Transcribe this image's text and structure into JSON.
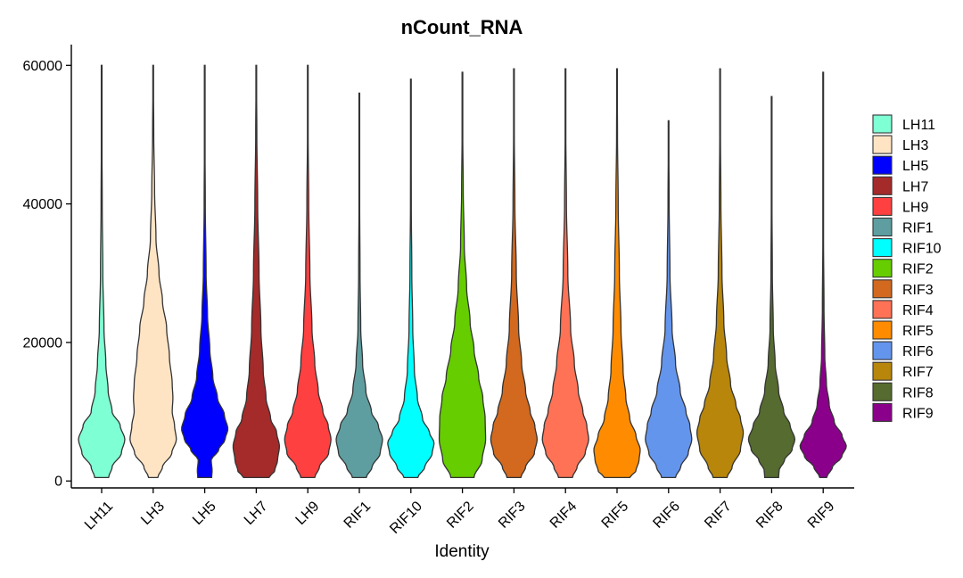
{
  "chart_data": {
    "type": "violin",
    "title": "nCount_RNA",
    "xlabel": "Identity",
    "ylabel": "",
    "ylim": [
      -1000,
      63000
    ],
    "yticks": [
      0,
      20000,
      40000,
      60000
    ],
    "ytick_labels": [
      "0",
      "20000",
      "40000",
      "60000"
    ],
    "legend_position": "right",
    "categories": [
      "LH11",
      "LH3",
      "LH5",
      "LH7",
      "LH9",
      "RIF1",
      "RIF10",
      "RIF2",
      "RIF3",
      "RIF4",
      "RIF5",
      "RIF6",
      "RIF7",
      "RIF8",
      "RIF9"
    ],
    "series": [
      {
        "name": "LH11",
        "color": "#7FFFD4",
        "min": 500,
        "max": 60000,
        "profile": [
          [
            500,
            0.3
          ],
          [
            2000,
            0.45
          ],
          [
            4000,
            0.85
          ],
          [
            6000,
            1.0
          ],
          [
            8000,
            0.8
          ],
          [
            10000,
            0.45
          ],
          [
            13000,
            0.28
          ],
          [
            17000,
            0.18
          ],
          [
            22000,
            0.1
          ],
          [
            30000,
            0.05
          ],
          [
            40000,
            0.025
          ],
          [
            50000,
            0.012
          ],
          [
            60000,
            0.004
          ]
        ]
      },
      {
        "name": "LH3",
        "color": "#FFE4C4",
        "min": 500,
        "max": 60000,
        "profile": [
          [
            500,
            0.2
          ],
          [
            2000,
            0.4
          ],
          [
            4000,
            0.8
          ],
          [
            6000,
            1.0
          ],
          [
            8000,
            0.92
          ],
          [
            10000,
            0.82
          ],
          [
            12000,
            0.85
          ],
          [
            14000,
            0.82
          ],
          [
            18000,
            0.7
          ],
          [
            22000,
            0.58
          ],
          [
            26000,
            0.4
          ],
          [
            30000,
            0.25
          ],
          [
            35000,
            0.12
          ],
          [
            42000,
            0.06
          ],
          [
            50000,
            0.025
          ],
          [
            60000,
            0.005
          ]
        ]
      },
      {
        "name": "LH5",
        "color": "#0000FF",
        "min": 500,
        "max": 60000,
        "profile": [
          [
            500,
            0.3
          ],
          [
            1500,
            0.32
          ],
          [
            3000,
            0.28
          ],
          [
            4500,
            0.6
          ],
          [
            6000,
            0.88
          ],
          [
            7500,
            1.0
          ],
          [
            9500,
            0.85
          ],
          [
            12000,
            0.55
          ],
          [
            15000,
            0.35
          ],
          [
            19000,
            0.22
          ],
          [
            24000,
            0.12
          ],
          [
            30000,
            0.06
          ],
          [
            40000,
            0.025
          ],
          [
            50000,
            0.01
          ],
          [
            60000,
            0.004
          ]
        ]
      },
      {
        "name": "LH7",
        "color": "#A52A2A",
        "min": 500,
        "max": 60000,
        "profile": [
          [
            500,
            0.55
          ],
          [
            1500,
            0.8
          ],
          [
            3000,
            0.92
          ],
          [
            5000,
            1.0
          ],
          [
            7000,
            0.88
          ],
          [
            9000,
            0.62
          ],
          [
            12000,
            0.42
          ],
          [
            16000,
            0.3
          ],
          [
            22000,
            0.2
          ],
          [
            30000,
            0.12
          ],
          [
            40000,
            0.06
          ],
          [
            50000,
            0.025
          ],
          [
            60000,
            0.005
          ]
        ]
      },
      {
        "name": "LH9",
        "color": "#FF4040",
        "min": 500,
        "max": 60000,
        "profile": [
          [
            500,
            0.3
          ],
          [
            2000,
            0.5
          ],
          [
            4000,
            0.9
          ],
          [
            6000,
            1.0
          ],
          [
            8000,
            0.88
          ],
          [
            10000,
            0.65
          ],
          [
            13000,
            0.45
          ],
          [
            17000,
            0.3
          ],
          [
            22000,
            0.18
          ],
          [
            30000,
            0.09
          ],
          [
            40000,
            0.04
          ],
          [
            50000,
            0.015
          ],
          [
            60000,
            0.004
          ]
        ]
      },
      {
        "name": "RIF1",
        "color": "#5F9EA0",
        "min": 500,
        "max": 56000,
        "profile": [
          [
            500,
            0.3
          ],
          [
            2000,
            0.55
          ],
          [
            4000,
            0.9
          ],
          [
            6000,
            1.0
          ],
          [
            8000,
            0.82
          ],
          [
            10000,
            0.52
          ],
          [
            13000,
            0.28
          ],
          [
            17000,
            0.14
          ],
          [
            22000,
            0.06
          ],
          [
            30000,
            0.03
          ],
          [
            40000,
            0.015
          ],
          [
            56000,
            0.004
          ]
        ]
      },
      {
        "name": "RIF10",
        "color": "#00FFFF",
        "min": 500,
        "max": 58000,
        "profile": [
          [
            500,
            0.3
          ],
          [
            2000,
            0.6
          ],
          [
            4000,
            0.92
          ],
          [
            5500,
            1.0
          ],
          [
            7000,
            0.8
          ],
          [
            9000,
            0.5
          ],
          [
            12000,
            0.28
          ],
          [
            16000,
            0.15
          ],
          [
            22000,
            0.08
          ],
          [
            30000,
            0.04
          ],
          [
            40000,
            0.018
          ],
          [
            58000,
            0.004
          ]
        ]
      },
      {
        "name": "RIF2",
        "color": "#66CD00",
        "min": 500,
        "max": 59000,
        "profile": [
          [
            500,
            0.5
          ],
          [
            3000,
            0.85
          ],
          [
            6000,
            1.0
          ],
          [
            9000,
            0.98
          ],
          [
            12000,
            0.88
          ],
          [
            15000,
            0.7
          ],
          [
            19000,
            0.5
          ],
          [
            23000,
            0.33
          ],
          [
            28000,
            0.18
          ],
          [
            34000,
            0.08
          ],
          [
            42000,
            0.035
          ],
          [
            50000,
            0.015
          ],
          [
            59000,
            0.004
          ]
        ]
      },
      {
        "name": "RIF3",
        "color": "#D2691E",
        "min": 500,
        "max": 59500,
        "profile": [
          [
            500,
            0.3
          ],
          [
            2000,
            0.5
          ],
          [
            4000,
            0.88
          ],
          [
            6000,
            1.0
          ],
          [
            8000,
            0.9
          ],
          [
            10000,
            0.7
          ],
          [
            13000,
            0.5
          ],
          [
            17000,
            0.33
          ],
          [
            22000,
            0.2
          ],
          [
            30000,
            0.1
          ],
          [
            40000,
            0.04
          ],
          [
            50000,
            0.015
          ],
          [
            59500,
            0.004
          ]
        ]
      },
      {
        "name": "RIF4",
        "color": "#FF7256",
        "min": 500,
        "max": 59500,
        "profile": [
          [
            500,
            0.3
          ],
          [
            2000,
            0.5
          ],
          [
            4000,
            0.85
          ],
          [
            6000,
            1.0
          ],
          [
            8000,
            0.92
          ],
          [
            10000,
            0.75
          ],
          [
            13000,
            0.55
          ],
          [
            17000,
            0.38
          ],
          [
            22000,
            0.22
          ],
          [
            30000,
            0.1
          ],
          [
            40000,
            0.04
          ],
          [
            50000,
            0.015
          ],
          [
            59500,
            0.004
          ]
        ]
      },
      {
        "name": "RIF5",
        "color": "#FF8C00",
        "min": 500,
        "max": 59500,
        "profile": [
          [
            500,
            0.55
          ],
          [
            1500,
            0.82
          ],
          [
            3000,
            0.95
          ],
          [
            4500,
            1.0
          ],
          [
            6500,
            0.82
          ],
          [
            9000,
            0.55
          ],
          [
            12000,
            0.38
          ],
          [
            16000,
            0.26
          ],
          [
            22000,
            0.17
          ],
          [
            30000,
            0.1
          ],
          [
            40000,
            0.05
          ],
          [
            50000,
            0.02
          ],
          [
            59500,
            0.005
          ]
        ]
      },
      {
        "name": "RIF6",
        "color": "#6495ED",
        "min": 500,
        "max": 52000,
        "profile": [
          [
            500,
            0.3
          ],
          [
            2000,
            0.52
          ],
          [
            4000,
            0.85
          ],
          [
            6000,
            1.0
          ],
          [
            8000,
            0.92
          ],
          [
            10000,
            0.75
          ],
          [
            13000,
            0.5
          ],
          [
            17000,
            0.3
          ],
          [
            22000,
            0.15
          ],
          [
            30000,
            0.06
          ],
          [
            40000,
            0.025
          ],
          [
            52000,
            0.004
          ]
        ]
      },
      {
        "name": "RIF7",
        "color": "#B8860B",
        "min": 500,
        "max": 59500,
        "profile": [
          [
            500,
            0.3
          ],
          [
            2000,
            0.52
          ],
          [
            4500,
            0.88
          ],
          [
            7000,
            1.0
          ],
          [
            9000,
            0.88
          ],
          [
            11000,
            0.68
          ],
          [
            14000,
            0.45
          ],
          [
            18000,
            0.28
          ],
          [
            23000,
            0.16
          ],
          [
            30000,
            0.08
          ],
          [
            40000,
            0.035
          ],
          [
            50000,
            0.015
          ],
          [
            59500,
            0.004
          ]
        ]
      },
      {
        "name": "RIF8",
        "color": "#556B2F",
        "min": 500,
        "max": 55500,
        "profile": [
          [
            500,
            0.3
          ],
          [
            1500,
            0.32
          ],
          [
            3000,
            0.55
          ],
          [
            4500,
            0.88
          ],
          [
            6000,
            1.0
          ],
          [
            8000,
            0.8
          ],
          [
            10000,
            0.52
          ],
          [
            13000,
            0.3
          ],
          [
            17000,
            0.15
          ],
          [
            22000,
            0.07
          ],
          [
            30000,
            0.03
          ],
          [
            40000,
            0.015
          ],
          [
            55500,
            0.004
          ]
        ]
      },
      {
        "name": "RIF9",
        "color": "#8B008B",
        "min": 500,
        "max": 59000,
        "profile": [
          [
            500,
            0.15
          ],
          [
            2000,
            0.4
          ],
          [
            3500,
            0.8
          ],
          [
            5000,
            1.0
          ],
          [
            6500,
            0.82
          ],
          [
            8500,
            0.48
          ],
          [
            11000,
            0.26
          ],
          [
            14000,
            0.14
          ],
          [
            18000,
            0.07
          ],
          [
            25000,
            0.035
          ],
          [
            35000,
            0.015
          ],
          [
            59000,
            0.004
          ]
        ]
      }
    ]
  }
}
